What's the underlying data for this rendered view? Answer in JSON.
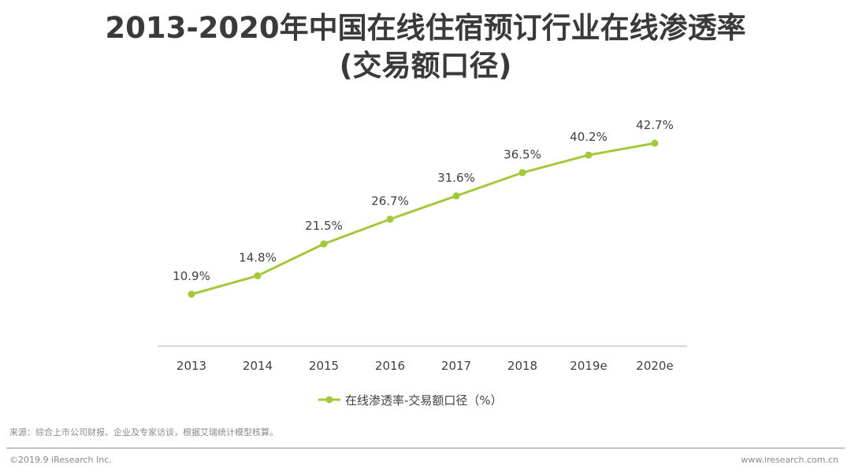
{
  "title_line1": "2013-2020年中国在线住宿预订行业在线渗透率",
  "title_line2": "(交易额口径)",
  "chart_data": {
    "type": "line",
    "categories": [
      "2013",
      "2014",
      "2015",
      "2016",
      "2017",
      "2018",
      "2019e",
      "2020e"
    ],
    "series": [
      {
        "name": "在线渗透率-交易额口径（%）",
        "values": [
          10.9,
          14.8,
          21.5,
          26.7,
          31.6,
          36.5,
          40.2,
          42.7
        ],
        "labels": [
          "10.9%",
          "14.8%",
          "21.5%",
          "26.7%",
          "31.6%",
          "36.5%",
          "40.2%",
          "42.7%"
        ],
        "color": "#a3c93a"
      }
    ],
    "legend_position": "bottom",
    "grid": false
  },
  "source_note": "来源：综合上市公司财报、企业及专家访谈，根据艾瑞统计模型核算。",
  "copyright": "©2019.9 iResearch Inc.",
  "website": "www.iresearch.com.cn"
}
